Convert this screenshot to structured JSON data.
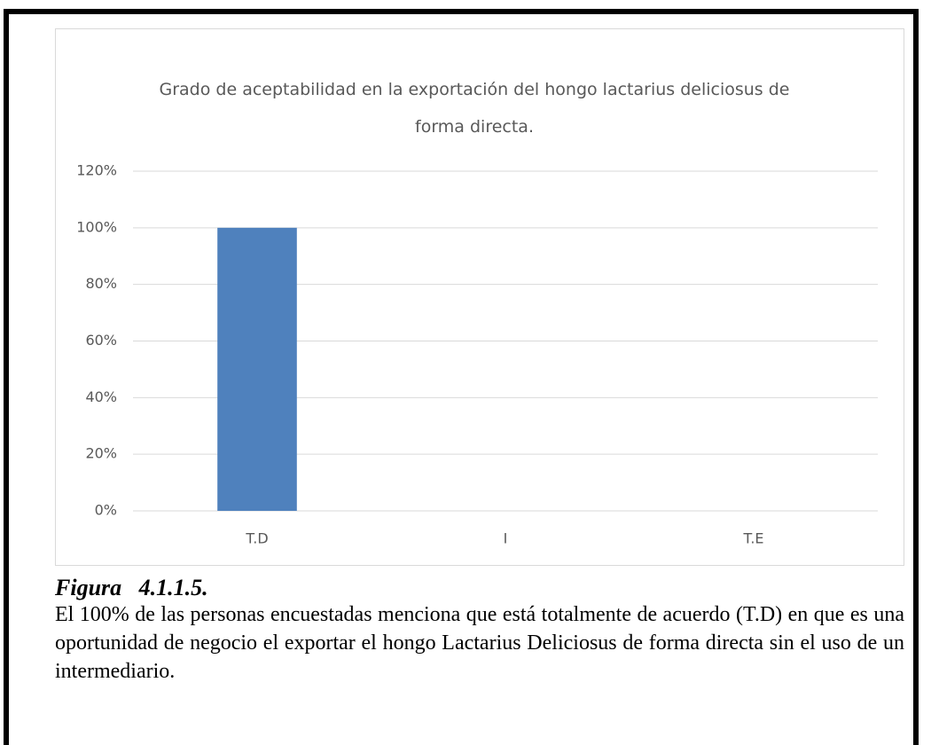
{
  "chart_data": {
    "type": "bar",
    "title": "Grado de aceptabilidad en la exportación del hongo lactarius deliciosus de forma directa.",
    "categories": [
      "T.D",
      "I",
      "T.E"
    ],
    "values": [
      100,
      0,
      0
    ],
    "color": "#4f81bd",
    "ylim": [
      0,
      120
    ],
    "yticks": [
      {
        "value": 0,
        "label": "0%"
      },
      {
        "value": 20,
        "label": "20%"
      },
      {
        "value": 40,
        "label": "40%"
      },
      {
        "value": 60,
        "label": "60%"
      },
      {
        "value": 80,
        "label": "80%"
      },
      {
        "value": 100,
        "label": "100%"
      },
      {
        "value": 120,
        "label": "120%"
      }
    ],
    "grid": true
  },
  "caption": {
    "label": "Figura   4.1.1.5.",
    "text": "El 100% de las personas encuestadas menciona que está totalmente de acuerdo (T.D) en que es una oportunidad de negocio el exportar el hongo Lactarius Deliciosus de forma directa sin el uso de un intermediario."
  }
}
